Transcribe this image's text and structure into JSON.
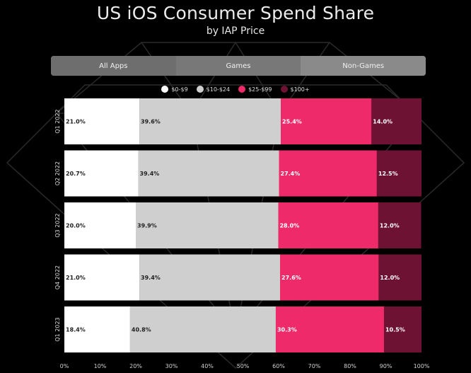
{
  "title": "US iOS Consumer Spend Share",
  "subtitle": "by IAP Price",
  "tabs": [
    {
      "label": "All Apps"
    },
    {
      "label": "Games"
    },
    {
      "label": "Non-Games"
    }
  ],
  "colors": {
    "s0": "#ffffff",
    "s1": "#cfcfcf",
    "s2": "#ee2a6b",
    "s3": "#6e1233",
    "background": "#000000"
  },
  "legend": [
    {
      "label": "$0-$9",
      "color": "#ffffff"
    },
    {
      "label": "$10-$24",
      "color": "#cfcfcf"
    },
    {
      "label": "$25-$99",
      "color": "#ee2a6b"
    },
    {
      "label": "$100+",
      "color": "#6e1233"
    }
  ],
  "chart_data": {
    "type": "bar",
    "orientation": "horizontal",
    "stacked": true,
    "title": "US iOS Consumer Spend Share",
    "subtitle": "by IAP Price",
    "categories": [
      "Q1 2022",
      "Q2 2022",
      "Q3 2022",
      "Q4 2022",
      "Q1 2023"
    ],
    "series": [
      {
        "name": "$0-$9",
        "values": [
          21.0,
          20.7,
          20.0,
          21.0,
          18.4
        ],
        "labels": [
          "21.0%",
          "20.7%",
          "20.0%",
          "21.0%",
          "18.4%"
        ]
      },
      {
        "name": "$10-$24",
        "values": [
          39.6,
          39.4,
          39.9,
          39.4,
          40.8
        ],
        "labels": [
          "39.6%",
          "39.4%",
          "39.9%",
          "39.4%",
          "40.8%"
        ]
      },
      {
        "name": "$25-$99",
        "values": [
          25.4,
          27.4,
          28.0,
          27.6,
          30.3
        ],
        "labels": [
          "25.4%",
          "27.4%",
          "28.0%",
          "27.6%",
          "30.3%"
        ]
      },
      {
        "name": "$100+",
        "values": [
          14.0,
          12.5,
          12.0,
          12.0,
          10.5
        ],
        "labels": [
          "14.0%",
          "12.5%",
          "12.0%",
          "12.0%",
          "10.5%"
        ]
      }
    ],
    "xlim": [
      0,
      100
    ],
    "xticks": [
      "0%",
      "10%",
      "20%",
      "30%",
      "40%",
      "50%",
      "60%",
      "70%",
      "80%",
      "90%",
      "100%"
    ],
    "legend_position": "top",
    "grid": false
  }
}
